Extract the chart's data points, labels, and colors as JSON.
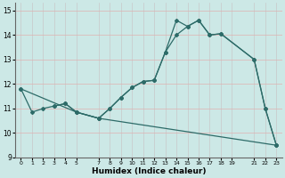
{
  "xlabel": "Humidex (Indice chaleur)",
  "bg_color": "#cce8e6",
  "line_color": "#2d6b68",
  "grid_color": "#e8c8c8",
  "xlim": [
    -0.5,
    23.5
  ],
  "ylim": [
    9,
    15.3
  ],
  "xticks": [
    0,
    1,
    2,
    3,
    4,
    5,
    7,
    8,
    9,
    10,
    11,
    12,
    13,
    14,
    15,
    16,
    17,
    18,
    19,
    21,
    22,
    23
  ],
  "xtick_labels": [
    "0",
    "1",
    "2",
    "3",
    "4",
    "5",
    "7",
    "8",
    "9",
    "10",
    "11",
    "12",
    "13",
    "14",
    "15",
    "16",
    "17",
    "18",
    "19",
    "21",
    "22",
    "23"
  ],
  "yticks": [
    9,
    10,
    11,
    12,
    13,
    14,
    15
  ],
  "line1_x": [
    0,
    1,
    2,
    3,
    4,
    5,
    7,
    8,
    9,
    10,
    11,
    12,
    13,
    14,
    15,
    16,
    17,
    18,
    21,
    22,
    23
  ],
  "line1_y": [
    11.8,
    10.85,
    11.0,
    11.1,
    11.2,
    10.85,
    10.6,
    11.0,
    11.45,
    11.85,
    12.1,
    12.15,
    13.3,
    14.6,
    14.35,
    14.6,
    14.0,
    14.05,
    13.0,
    11.0,
    9.5
  ],
  "line2_x": [
    3,
    4,
    5,
    7,
    8,
    9,
    10,
    11,
    12,
    13,
    14,
    15,
    16,
    17,
    18,
    21,
    22,
    23
  ],
  "line2_y": [
    11.1,
    11.2,
    10.85,
    10.6,
    11.0,
    11.45,
    11.85,
    12.1,
    12.15,
    13.3,
    14.0,
    14.35,
    14.6,
    14.0,
    14.05,
    13.0,
    11.0,
    9.5
  ],
  "line3_x": [
    0,
    5,
    7,
    23
  ],
  "line3_y": [
    11.8,
    10.85,
    10.6,
    9.5
  ]
}
